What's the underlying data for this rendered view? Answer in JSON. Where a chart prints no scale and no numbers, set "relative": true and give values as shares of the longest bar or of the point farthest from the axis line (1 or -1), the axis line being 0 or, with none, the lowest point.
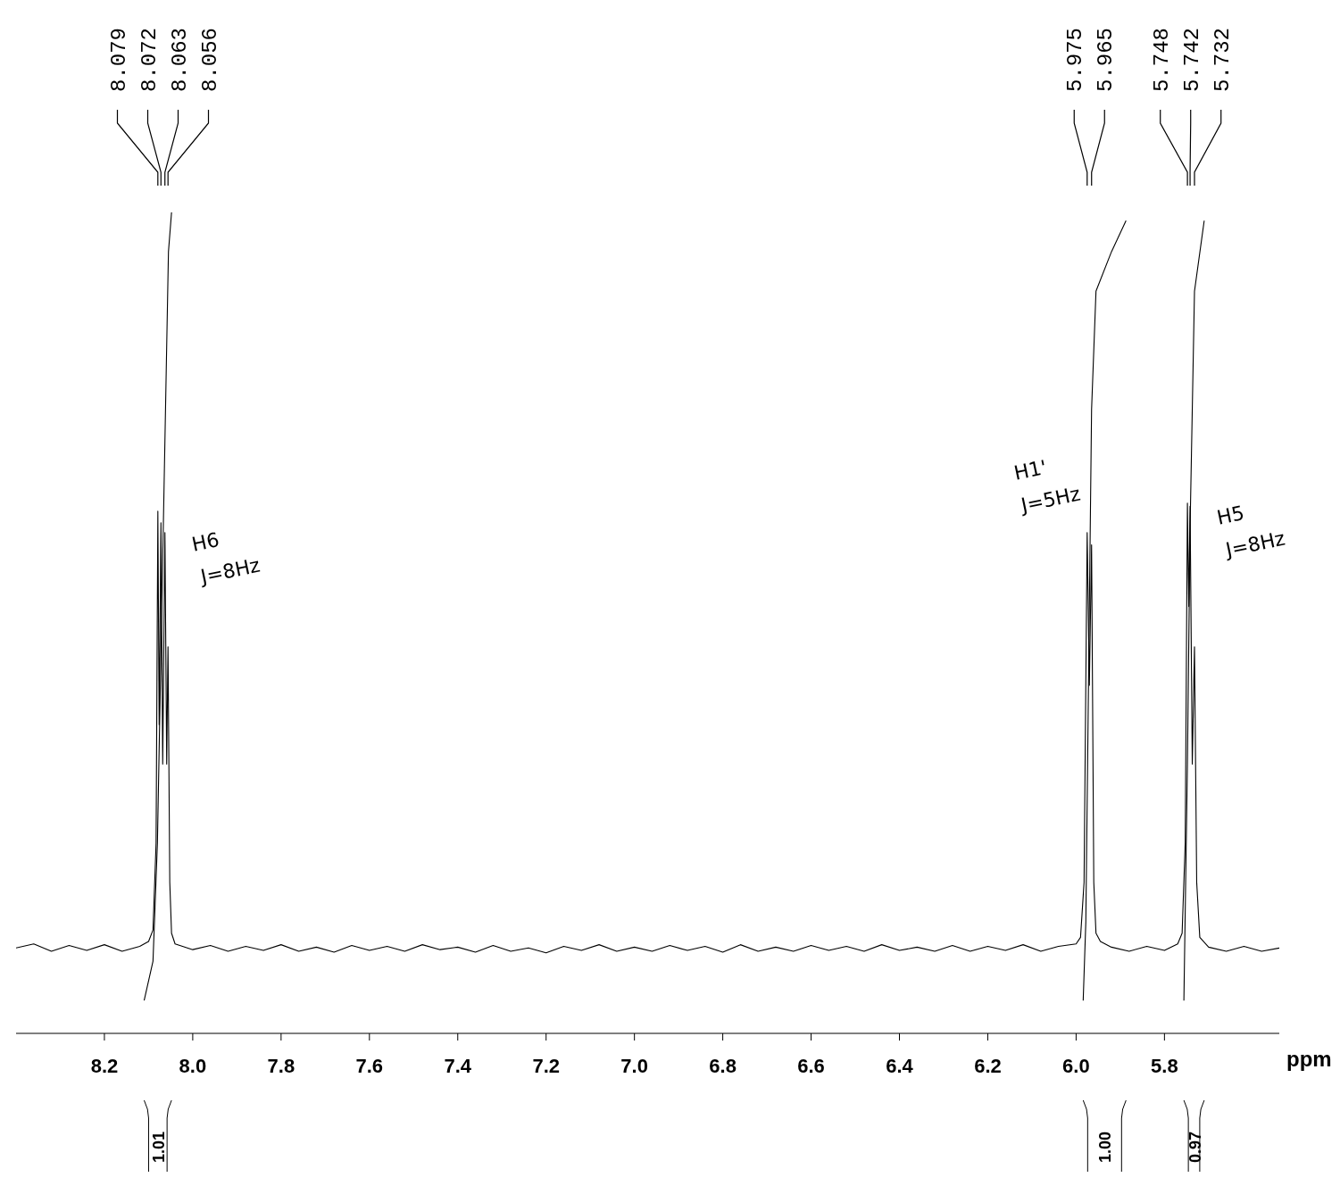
{
  "chart_data": {
    "type": "line",
    "relative": true,
    "xlabel": "ppm",
    "xlim": [
      8.4,
      5.54
    ],
    "xticks": [
      {
        "value": 8.2,
        "label": "8.2"
      },
      {
        "value": 8,
        "label": "8.0"
      },
      {
        "value": 7.8,
        "label": "7.8"
      },
      {
        "value": 7.6,
        "label": "7.6"
      },
      {
        "value": 7.4,
        "label": "7.4"
      },
      {
        "value": 7.2,
        "label": "7.2"
      },
      {
        "value": 7,
        "label": "7.0"
      },
      {
        "value": 6.8,
        "label": "6.8"
      },
      {
        "value": 6.6,
        "label": "6.6"
      },
      {
        "value": 6.4,
        "label": "6.4"
      },
      {
        "value": 6.2,
        "label": "6.2"
      },
      {
        "value": 6,
        "label": "6.0"
      },
      {
        "value": 5.8,
        "label": "5.8"
      }
    ],
    "series": [
      {
        "color": "#000000",
        "x": [
          8.4,
          8.36,
          8.32,
          8.28,
          8.24,
          8.2,
          8.16,
          8.12,
          8.1,
          8.09,
          8.083,
          8.079,
          8.076,
          8.072,
          8.068,
          8.063,
          8.059,
          8.056,
          8.052,
          8.048,
          8.04,
          8,
          7.96,
          7.92,
          7.88,
          7.84,
          7.8,
          7.76,
          7.72,
          7.68,
          7.64,
          7.6,
          7.56,
          7.52,
          7.48,
          7.44,
          7.4,
          7.36,
          7.32,
          7.28,
          7.24,
          7.2,
          7.16,
          7.12,
          7.08,
          7.04,
          7,
          6.96,
          6.92,
          6.88,
          6.84,
          6.8,
          6.76,
          6.72,
          6.68,
          6.64,
          6.6,
          6.56,
          6.52,
          6.48,
          6.44,
          6.4,
          6.36,
          6.32,
          6.28,
          6.24,
          6.2,
          6.16,
          6.12,
          6.08,
          6.04,
          6,
          5.99,
          5.982,
          5.975,
          5.97,
          5.965,
          5.96,
          5.955,
          5.945,
          5.92,
          5.88,
          5.84,
          5.8,
          5.77,
          5.76,
          5.753,
          5.748,
          5.745,
          5.742,
          5.737,
          5.732,
          5.727,
          5.72,
          5.7,
          5.66,
          5.62,
          5.58,
          5.54
        ],
        "values": [
          0.104,
          0.109,
          0.1,
          0.107,
          0.101,
          0.108,
          0.1,
          0.106,
          0.112,
          0.126,
          0.232,
          0.636,
          0.376,
          0.622,
          0.328,
          0.61,
          0.328,
          0.471,
          0.184,
          0.122,
          0.109,
          0.102,
          0.107,
          0.1,
          0.106,
          0.101,
          0.108,
          0.1,
          0.105,
          0.099,
          0.107,
          0.101,
          0.106,
          0.1,
          0.108,
          0.102,
          0.105,
          0.099,
          0.107,
          0.1,
          0.104,
          0.098,
          0.106,
          0.101,
          0.108,
          0.1,
          0.105,
          0.1,
          0.107,
          0.101,
          0.106,
          0.099,
          0.108,
          0.1,
          0.105,
          0.1,
          0.107,
          0.101,
          0.106,
          0.1,
          0.108,
          0.101,
          0.105,
          0.1,
          0.107,
          0.1,
          0.106,
          0.101,
          0.108,
          0.1,
          0.106,
          0.109,
          0.117,
          0.184,
          0.61,
          0.424,
          0.595,
          0.184,
          0.122,
          0.112,
          0.105,
          0.1,
          0.106,
          0.101,
          0.109,
          0.122,
          0.232,
          0.646,
          0.52,
          0.642,
          0.328,
          0.471,
          0.184,
          0.117,
          0.105,
          0.1,
          0.106,
          0.1,
          0.104
        ]
      },
      {
        "color": "#000000",
        "x": [
          8.11,
          8.09,
          8.08,
          8.07,
          8.06,
          8.055,
          8.048
        ],
        "values": [
          0.04,
          0.088,
          0.232,
          0.52,
          0.808,
          0.952,
          1
        ]
      },
      {
        "color": "#000000",
        "x": [
          5.984,
          5.978,
          5.972,
          5.965,
          5.955,
          5.92,
          5.887
        ],
        "values": [
          0.04,
          0.136,
          0.424,
          0.76,
          0.904,
          0.952,
          0.99
        ]
      },
      {
        "color": "#000000",
        "x": [
          5.756,
          5.748,
          5.742,
          5.732,
          5.71
        ],
        "values": [
          0.04,
          0.328,
          0.616,
          0.904,
          0.99
        ]
      }
    ],
    "annotations": [
      {
        "text": "8.079",
        "x": 8.079
      },
      {
        "text": "8.072",
        "x": 8.072
      },
      {
        "text": "8.063",
        "x": 8.063
      },
      {
        "text": "8.056",
        "x": 8.056
      },
      {
        "text": "5.975",
        "x": 5.975
      },
      {
        "text": "5.965",
        "x": 5.965
      },
      {
        "text": "5.748",
        "x": 5.748
      },
      {
        "text": "5.742",
        "x": 5.742
      },
      {
        "text": "5.732",
        "x": 5.732
      },
      "1.01",
      "1.00",
      "0.97",
      "H6",
      "J=8Hz",
      "H1'",
      "J=5Hz",
      "H5",
      "J=8Hz"
    ]
  }
}
